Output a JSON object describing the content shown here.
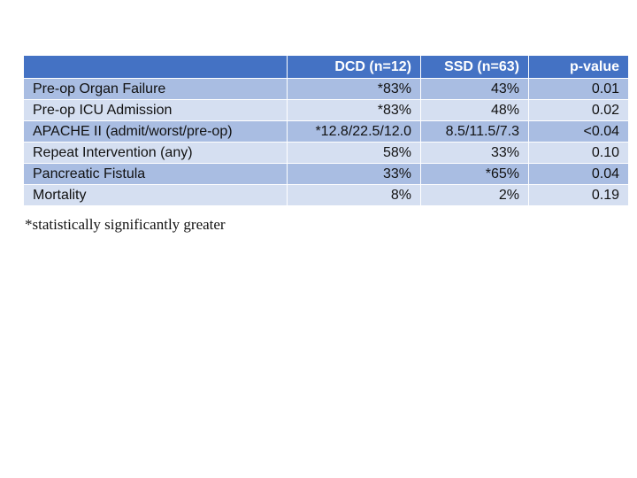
{
  "table": {
    "headers": [
      "",
      "DCD (n=12)",
      "SSD (n=63)",
      "p-value"
    ],
    "rows": [
      [
        "Pre-op Organ Failure",
        "*83%",
        "43%",
        "0.01"
      ],
      [
        "Pre-op ICU Admission",
        "*83%",
        "48%",
        "0.02"
      ],
      [
        "APACHE II (admit/worst/pre-op)",
        "*12.8/22.5/12.0",
        "8.5/11.5/7.3",
        "<0.04"
      ],
      [
        "Repeat Intervention (any)",
        "58%",
        "33%",
        "0.10"
      ],
      [
        "Pancreatic Fistula",
        "33%",
        "*65%",
        "0.04"
      ],
      [
        "Mortality",
        "8%",
        "2%",
        "0.19"
      ]
    ]
  },
  "footnote": "*statistically significantly greater",
  "colors": {
    "header_bg": "#4472c4",
    "row_dark": "#a9bde2",
    "row_light": "#d5dff1"
  }
}
